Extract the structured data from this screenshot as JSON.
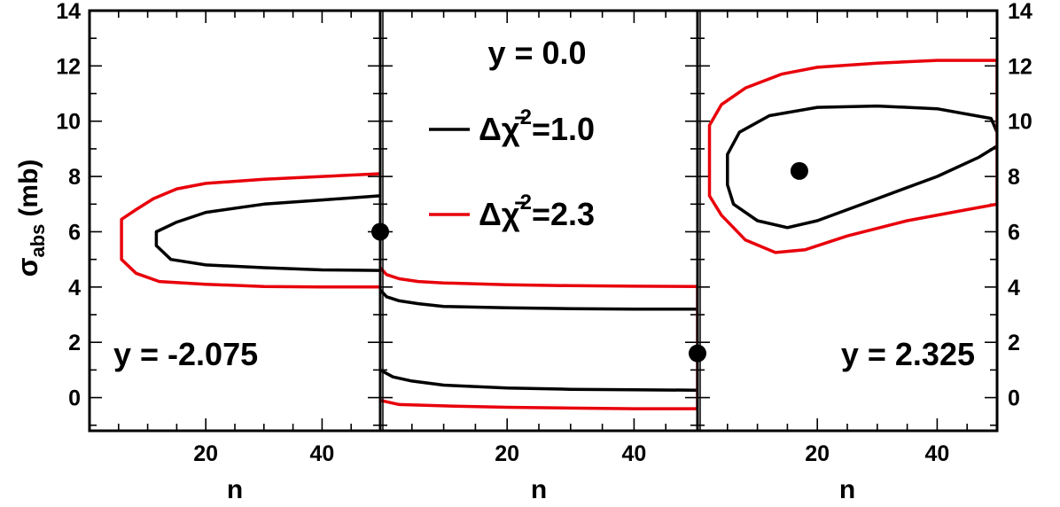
{
  "chart_data": {
    "type": "line",
    "shared_y_axis": {
      "label_main": "σ",
      "label_sub": "abs",
      "label_unit": "(mb)",
      "ylim": [
        -1.2,
        14
      ],
      "major_ticks": [
        0,
        2,
        4,
        6,
        8,
        10,
        12,
        14
      ],
      "minor_step": 1,
      "labels_left": true,
      "labels_right": true
    },
    "legend": {
      "placement": "top-center-middle-panel",
      "entries": [
        {
          "prefix": "Δχ̄",
          "sup": "2",
          "suffix": "=1.0",
          "color": "#000000"
        },
        {
          "prefix": "Δχ̄",
          "sup": "2",
          "suffix": "=2.3",
          "color": "#e8000b"
        }
      ]
    },
    "panels": [
      {
        "xlabel": "n",
        "xlim": [
          0,
          50
        ],
        "x_ticks": [
          20,
          40
        ],
        "minor_step": 5,
        "annotation": "y = -2.075",
        "best_fit": {
          "x": 50,
          "y": 6.0
        },
        "series": [
          {
            "name": "Δχ̄²=1.0",
            "color": "#000000",
            "closed": false,
            "points": [
              [
                50,
                7.3
              ],
              [
                40,
                7.15
              ],
              [
                30,
                7.0
              ],
              [
                20,
                6.7
              ],
              [
                15,
                6.35
              ],
              [
                11.5,
                6.0
              ],
              [
                11.5,
                5.5
              ],
              [
                14,
                5.0
              ],
              [
                20,
                4.8
              ],
              [
                30,
                4.7
              ],
              [
                40,
                4.62
              ],
              [
                50,
                4.6
              ]
            ]
          },
          {
            "name": "Δχ̄²=2.3",
            "color": "#e8000b",
            "closed": false,
            "points": [
              [
                50,
                8.1
              ],
              [
                40,
                8.0
              ],
              [
                30,
                7.9
              ],
              [
                20,
                7.75
              ],
              [
                15,
                7.55
              ],
              [
                11,
                7.2
              ],
              [
                8,
                6.8
              ],
              [
                5.5,
                6.45
              ],
              [
                5.5,
                5.0
              ],
              [
                8,
                4.5
              ],
              [
                12,
                4.2
              ],
              [
                20,
                4.1
              ],
              [
                30,
                4.02
              ],
              [
                40,
                4.0
              ],
              [
                50,
                4.0
              ]
            ]
          }
        ]
      },
      {
        "xlabel": "n",
        "xlim": [
          0,
          50
        ],
        "x_ticks": [
          20,
          40
        ],
        "minor_step": 5,
        "annotation": "y = 0.0",
        "best_fit": {
          "x": 50,
          "y": 1.6
        },
        "series": [
          {
            "name": "Δχ̄²=1.0 (upper)",
            "color": "#000000",
            "closed": false,
            "points": [
              [
                0,
                3.9
              ],
              [
                1,
                3.65
              ],
              [
                3,
                3.5
              ],
              [
                6,
                3.4
              ],
              [
                10,
                3.3
              ],
              [
                20,
                3.25
              ],
              [
                30,
                3.22
              ],
              [
                40,
                3.2
              ],
              [
                50,
                3.2
              ]
            ]
          },
          {
            "name": "Δχ̄²=1.0 (lower)",
            "color": "#000000",
            "closed": false,
            "points": [
              [
                0,
                1.0
              ],
              [
                2,
                0.75
              ],
              [
                5,
                0.6
              ],
              [
                10,
                0.45
              ],
              [
                20,
                0.35
              ],
              [
                30,
                0.3
              ],
              [
                40,
                0.28
              ],
              [
                50,
                0.27
              ]
            ]
          },
          {
            "name": "Δχ̄²=2.3 (upper)",
            "color": "#e8000b",
            "closed": false,
            "points": [
              [
                0,
                4.7
              ],
              [
                1,
                4.45
              ],
              [
                3,
                4.3
              ],
              [
                6,
                4.2
              ],
              [
                10,
                4.15
              ],
              [
                20,
                4.08
              ],
              [
                30,
                4.05
              ],
              [
                40,
                4.03
              ],
              [
                50,
                4.02
              ],
              [
                50,
                -0.4
              ]
            ]
          },
          {
            "name": "Δχ̄²=2.3 (lower)",
            "color": "#e8000b",
            "closed": false,
            "points": [
              [
                0,
                -0.1
              ],
              [
                3,
                -0.25
              ],
              [
                10,
                -0.3
              ],
              [
                20,
                -0.35
              ],
              [
                30,
                -0.38
              ],
              [
                40,
                -0.4
              ],
              [
                50,
                -0.4
              ]
            ]
          }
        ]
      },
      {
        "xlabel": "n",
        "xlim": [
          0,
          50
        ],
        "x_ticks": [
          20,
          40
        ],
        "minor_step": 5,
        "annotation": "y = 2.325",
        "best_fit": {
          "x": 17,
          "y": 8.2
        },
        "series": [
          {
            "name": "Δχ̄²=1.0",
            "color": "#000000",
            "closed": false,
            "points": [
              [
                50,
                9.1
              ],
              [
                47,
                8.7
              ],
              [
                40,
                8.0
              ],
              [
                30,
                7.2
              ],
              [
                20,
                6.4
              ],
              [
                15,
                6.15
              ],
              [
                10,
                6.4
              ],
              [
                6,
                7.0
              ],
              [
                5,
                7.7
              ],
              [
                5,
                8.8
              ],
              [
                7,
                9.6
              ],
              [
                12,
                10.2
              ],
              [
                20,
                10.5
              ],
              [
                30,
                10.55
              ],
              [
                40,
                10.45
              ],
              [
                49,
                10.1
              ],
              [
                50,
                9.6
              ]
            ]
          },
          {
            "name": "Δχ̄²=2.3",
            "color": "#e8000b",
            "closed": false,
            "points": [
              [
                50,
                7.0
              ],
              [
                45,
                6.8
              ],
              [
                35,
                6.4
              ],
              [
                25,
                5.85
              ],
              [
                18,
                5.35
              ],
              [
                13,
                5.25
              ],
              [
                8,
                5.7
              ],
              [
                4,
                6.6
              ],
              [
                2,
                7.3
              ],
              [
                2,
                9.85
              ],
              [
                4,
                10.6
              ],
              [
                8,
                11.2
              ],
              [
                14,
                11.7
              ],
              [
                20,
                11.95
              ],
              [
                30,
                12.1
              ],
              [
                40,
                12.2
              ],
              [
                50,
                12.2
              ],
              [
                50,
                7.0
              ]
            ]
          }
        ]
      }
    ]
  }
}
